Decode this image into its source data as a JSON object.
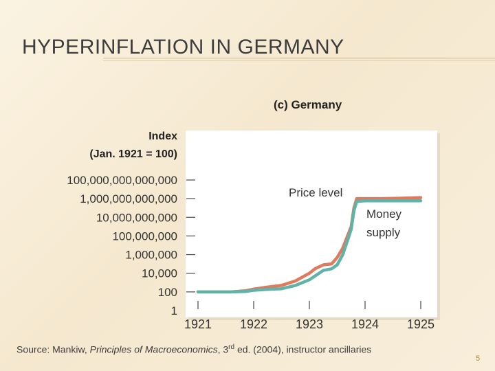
{
  "slide": {
    "title": "HYPERINFLATION IN GERMANY",
    "page_number": "5"
  },
  "source": {
    "prefix": "Source: Mankiw, ",
    "book": "Principles of Macroeconomics",
    "edition_sep": ", 3",
    "edition_sup": "rd",
    "suffix": " ed. (2004), instructor ancillaries"
  },
  "colors": {
    "price_level": "#e07a5f",
    "money_supply": "#5fb3a8",
    "plot_bg": "#ffffff"
  },
  "chart_data": {
    "type": "line",
    "title": "(c) Germany",
    "ylabel": "Index",
    "ylabel_sub": "(Jan. 1921 = 100)",
    "xlabel": "",
    "y_scale": "log10",
    "xlim": [
      1921,
      1925
    ],
    "ylim": [
      1,
      100000000000000.0
    ],
    "x_ticks": [
      "1921",
      "1922",
      "1923",
      "1924",
      "1925"
    ],
    "y_ticks": [
      {
        "label": "100,000,000,000,000",
        "value": 100000000000000.0
      },
      {
        "label": "1,000,000,000,000",
        "value": 1000000000000.0
      },
      {
        "label": "10,000,000,000",
        "value": 10000000000.0
      },
      {
        "label": "100,000,000",
        "value": 100000000.0
      },
      {
        "label": "1,000,000",
        "value": 1000000.0
      },
      {
        "label": "10,000",
        "value": 10000.0
      },
      {
        "label": "100",
        "value": 100
      },
      {
        "label": "1",
        "value": 1
      }
    ],
    "grid": false,
    "series": [
      {
        "name": "Price level",
        "x": [
          1921.0,
          1921.3,
          1921.6,
          1921.85,
          1922.0,
          1922.2,
          1922.5,
          1922.75,
          1923.0,
          1923.1,
          1923.25,
          1923.4,
          1923.5,
          1923.6,
          1923.75,
          1923.8,
          1923.85,
          1924.0,
          1924.3,
          1924.6,
          1925.0
        ],
        "y": [
          100,
          100,
          100,
          130,
          200,
          300,
          500,
          1500,
          10000,
          30000,
          80000,
          100000,
          500000,
          5000000,
          1000000000.0,
          100000000000.0,
          1000000000000.0,
          1000000000000.0,
          1000000000000.0,
          1100000000000.0,
          1300000000000.0
        ]
      },
      {
        "name": "Money supply",
        "x": [
          1921.0,
          1921.3,
          1921.6,
          1921.85,
          1922.0,
          1922.2,
          1922.5,
          1922.75,
          1923.0,
          1923.1,
          1923.25,
          1923.4,
          1923.5,
          1923.6,
          1923.75,
          1923.8,
          1923.85,
          1924.0,
          1924.3,
          1924.6,
          1925.0
        ],
        "y": [
          100,
          100,
          100,
          110,
          150,
          180,
          220,
          500,
          2000,
          5000,
          20000,
          30000,
          80000,
          1000000,
          500000000.0,
          50000000000.0,
          500000000000.0,
          600000000000.0,
          600000000000.0,
          600000000000.0,
          600000000000.0
        ]
      }
    ],
    "annotations": [
      {
        "text": "Price level",
        "series": "Price level"
      },
      {
        "text": "Money supply",
        "series": "Money supply",
        "lines": [
          "Money",
          "supply"
        ]
      }
    ]
  }
}
